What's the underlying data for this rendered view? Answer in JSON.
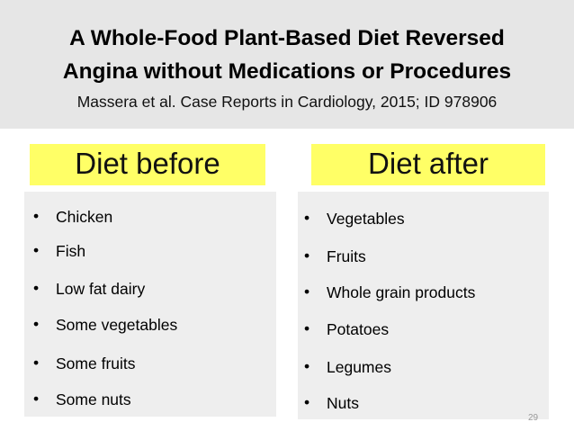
{
  "title_line1": "A Whole-Food Plant-Based Diet Reversed",
  "title_line2": "Angina without Medications or Procedures",
  "citation": "Massera et al. Case Reports in Cardiology, 2015; ID 978906",
  "before": {
    "heading": "Diet before",
    "items": [
      "Chicken",
      "Fish",
      "Low fat dairy",
      "Some vegetables",
      "Some fruits",
      "Some nuts"
    ]
  },
  "after": {
    "heading": "Diet after",
    "items": [
      "Vegetables",
      "Fruits",
      "Whole grain products",
      "Potatoes",
      "Legumes",
      "Nuts"
    ]
  },
  "page_number": "29",
  "bullet_glyph": "•",
  "colors": {
    "header_bg": "#e6e6e6",
    "heading_highlight": "#ffff66",
    "panel_bg": "#eeeeee"
  }
}
